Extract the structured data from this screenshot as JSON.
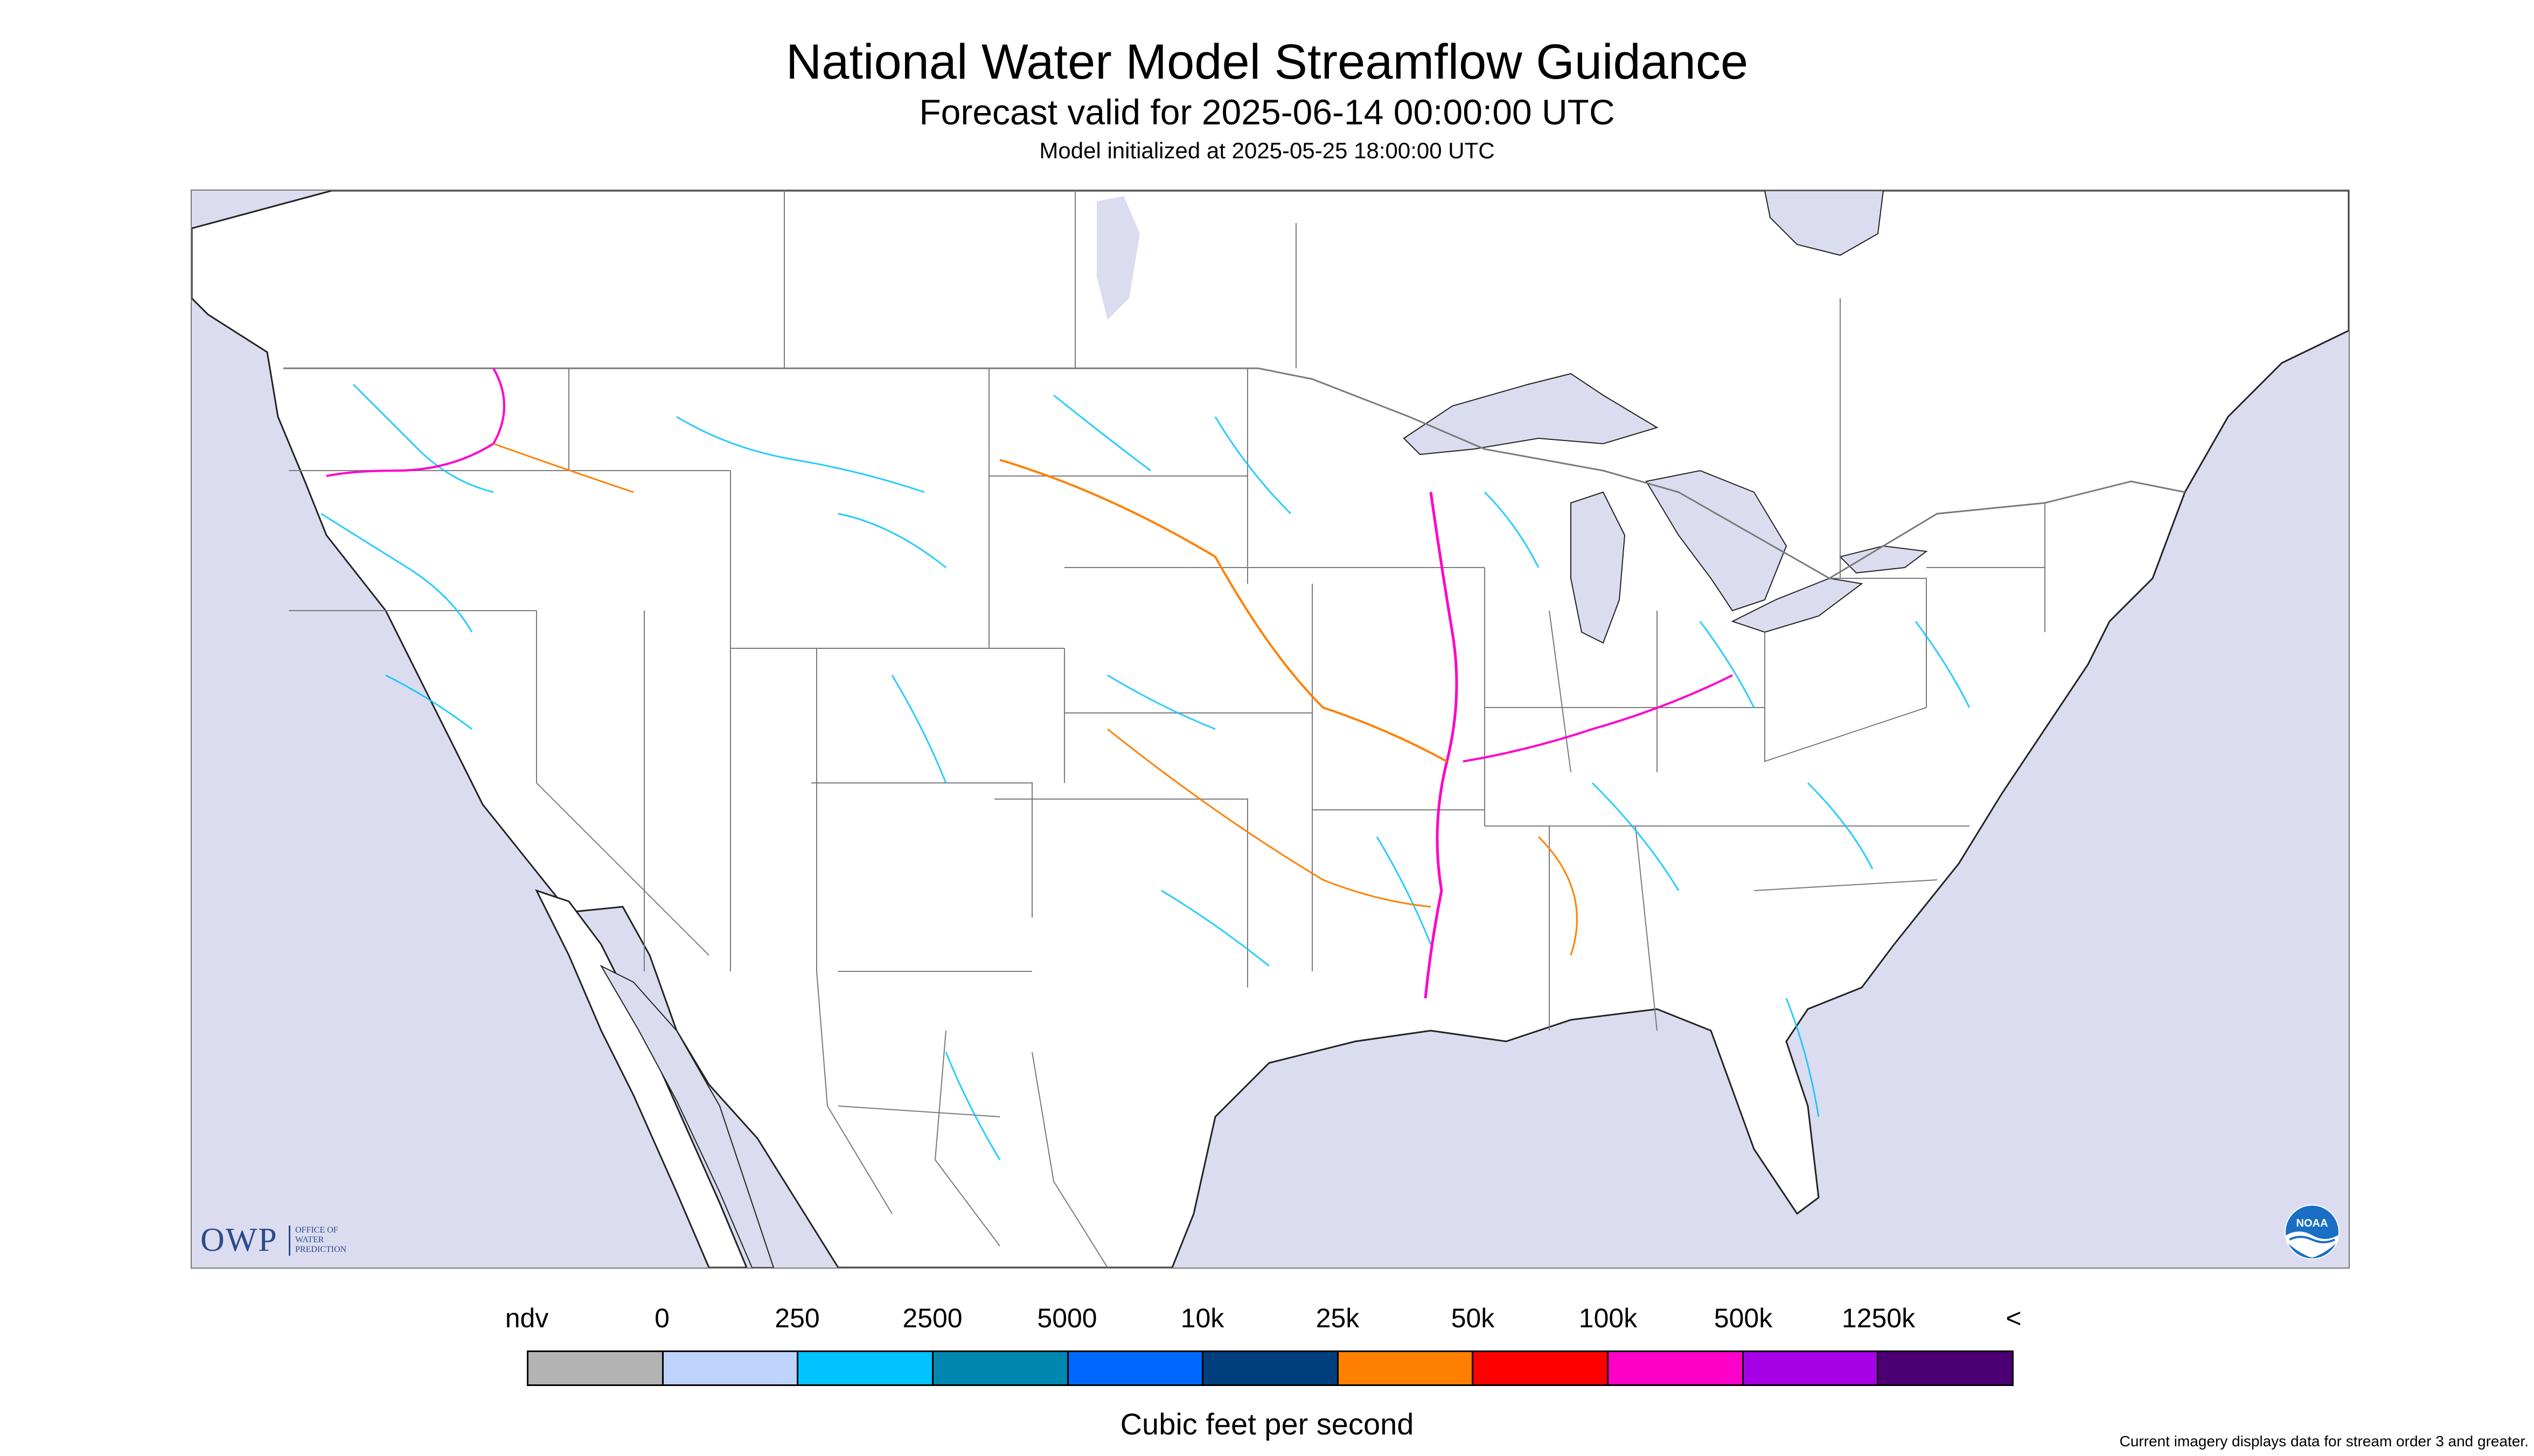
{
  "title": "National Water Model Streamflow Guidance",
  "subtitle": "Forecast valid for 2025-06-14 00:00:00 UTC",
  "subsubtitle": "Model initialized at 2025-05-25 18:00:00 UTC",
  "logos": {
    "owp_text": "OWP",
    "owp_line1": "OFFICE OF",
    "owp_line2": "WATER",
    "owp_line3": "PREDICTION",
    "noaa_text": "NOAA"
  },
  "legend": {
    "labels": [
      "ndv",
      "0",
      "250",
      "2500",
      "5000",
      "10k",
      "25k",
      "50k",
      "100k",
      "500k",
      "1250k",
      "<"
    ],
    "colors": [
      "#b3b3b3",
      "#bfd3ff",
      "#00c3ff",
      "#0087b0",
      "#0068ff",
      "#003f7d",
      "#ff8000",
      "#ff0000",
      "#ff00c8",
      "#a600e6",
      "#4c0073"
    ],
    "title": "Cubic feet per second"
  },
  "footnote": "Current imagery displays data for stream order 3 and greater.",
  "colors": {
    "water": "#dcdcf0",
    "land": "#ffffff",
    "borders": "#7a7a7a",
    "coast": "#222222"
  }
}
